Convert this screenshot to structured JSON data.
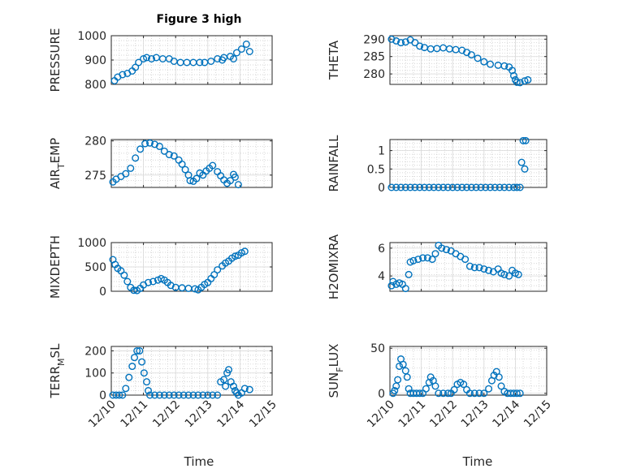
{
  "figure_title": "Figure 3 high",
  "colors": {
    "marker": "#0072bd",
    "axes": "#262626",
    "grid": "#d9d9d9",
    "background": "#ffffff"
  },
  "chart_data": [
    {
      "id": "pressure",
      "type": "scatter",
      "title": "Figure 3 high",
      "xlabel": "",
      "ylabel": "PRESSURE",
      "ylabel_sub": "",
      "xlim": [
        0,
        5
      ],
      "ylim": [
        800,
        1000
      ],
      "yticks": [
        800,
        900,
        1000
      ],
      "ytick_labels": [
        "800",
        "900",
        "1000"
      ],
      "xticks": [
        0,
        1,
        2,
        3,
        4,
        5
      ],
      "xtick_labels": [],
      "grid": true,
      "minor_grid": true,
      "points": [
        [
          0.1,
          815
        ],
        [
          0.2,
          830
        ],
        [
          0.35,
          840
        ],
        [
          0.5,
          845
        ],
        [
          0.65,
          855
        ],
        [
          0.75,
          870
        ],
        [
          0.85,
          890
        ],
        [
          1.0,
          905
        ],
        [
          1.1,
          910
        ],
        [
          1.25,
          905
        ],
        [
          1.4,
          910
        ],
        [
          1.6,
          905
        ],
        [
          1.8,
          905
        ],
        [
          1.95,
          895
        ],
        [
          2.15,
          890
        ],
        [
          2.35,
          890
        ],
        [
          2.55,
          890
        ],
        [
          2.75,
          890
        ],
        [
          2.9,
          890
        ],
        [
          3.1,
          895
        ],
        [
          3.3,
          905
        ],
        [
          3.5,
          910
        ],
        [
          3.7,
          915
        ],
        [
          3.9,
          930
        ],
        [
          4.05,
          945
        ],
        [
          4.2,
          965
        ],
        [
          4.3,
          935
        ],
        [
          3.8,
          905
        ],
        [
          3.45,
          900
        ]
      ]
    },
    {
      "id": "theta",
      "type": "scatter",
      "title": "",
      "xlabel": "",
      "ylabel": "THETA",
      "ylabel_sub": "",
      "xlim": [
        0,
        5
      ],
      "ylim": [
        277,
        291
      ],
      "yticks": [
        280,
        285,
        290
      ],
      "ytick_labels": [
        "280",
        "285",
        "290"
      ],
      "xticks": [
        0,
        1,
        2,
        3,
        4,
        5
      ],
      "xtick_labels": [],
      "grid": true,
      "minor_grid": true,
      "points": [
        [
          0.05,
          290
        ],
        [
          0.2,
          289.5
        ],
        [
          0.35,
          289
        ],
        [
          0.5,
          289.2
        ],
        [
          0.65,
          289.8
        ],
        [
          0.8,
          289
        ],
        [
          0.95,
          288
        ],
        [
          1.1,
          287.6
        ],
        [
          1.3,
          287.2
        ],
        [
          1.5,
          287.3
        ],
        [
          1.7,
          287.5
        ],
        [
          1.9,
          287.2
        ],
        [
          2.1,
          287.0
        ],
        [
          2.3,
          286.8
        ],
        [
          2.45,
          286.2
        ],
        [
          2.6,
          285.5
        ],
        [
          2.8,
          284.5
        ],
        [
          3.0,
          283.5
        ],
        [
          3.2,
          282.8
        ],
        [
          3.45,
          282.5
        ],
        [
          3.65,
          282.3
        ],
        [
          3.8,
          282.0
        ],
        [
          3.9,
          281.0
        ],
        [
          3.95,
          279.5
        ],
        [
          4.0,
          278.3
        ],
        [
          4.05,
          277.6
        ],
        [
          4.15,
          277.5
        ],
        [
          4.3,
          278.0
        ],
        [
          4.4,
          278.3
        ]
      ]
    },
    {
      "id": "air_temp",
      "type": "scatter",
      "title": "",
      "xlabel": "",
      "ylabel": "AIR",
      "ylabel_sub": "T",
      "ylabel_rest": "EMP",
      "xlim": [
        0,
        5
      ],
      "ylim": [
        273.2,
        280.2
      ],
      "yticks": [
        275,
        280
      ],
      "ytick_labels": [
        "275",
        "280"
      ],
      "xticks": [
        0,
        1,
        2,
        3,
        4,
        5
      ],
      "xtick_labels": [],
      "grid": true,
      "minor_grid": true,
      "points": [
        [
          0.05,
          274.0
        ],
        [
          0.15,
          274.4
        ],
        [
          0.3,
          274.8
        ],
        [
          0.45,
          275.2
        ],
        [
          0.6,
          276.0
        ],
        [
          0.75,
          277.5
        ],
        [
          0.9,
          278.8
        ],
        [
          1.05,
          279.6
        ],
        [
          1.2,
          279.7
        ],
        [
          1.35,
          279.5
        ],
        [
          1.5,
          279.2
        ],
        [
          1.65,
          278.5
        ],
        [
          1.8,
          278.0
        ],
        [
          1.95,
          277.8
        ],
        [
          2.1,
          277.2
        ],
        [
          2.2,
          276.6
        ],
        [
          2.3,
          275.8
        ],
        [
          2.4,
          275.0
        ],
        [
          2.45,
          274.2
        ],
        [
          2.55,
          274.1
        ],
        [
          2.65,
          274.5
        ],
        [
          2.75,
          275.3
        ],
        [
          2.85,
          275.0
        ],
        [
          2.95,
          275.6
        ],
        [
          3.05,
          276.0
        ],
        [
          3.15,
          276.4
        ],
        [
          3.3,
          275.5
        ],
        [
          3.4,
          274.9
        ],
        [
          3.5,
          274.3
        ],
        [
          3.6,
          273.8
        ],
        [
          3.7,
          274.2
        ],
        [
          3.8,
          275.1
        ],
        [
          3.85,
          274.7
        ],
        [
          3.95,
          273.6
        ]
      ]
    },
    {
      "id": "rainfall",
      "type": "scatter",
      "title": "",
      "xlabel": "",
      "ylabel": "RAINFALL",
      "ylabel_sub": "",
      "xlim": [
        0,
        5
      ],
      "ylim": [
        0,
        1.3
      ],
      "yticks": [
        0,
        0.5,
        1
      ],
      "ytick_labels": [
        "0",
        "0.5",
        "1"
      ],
      "xticks": [
        0,
        1,
        2,
        3,
        4,
        5
      ],
      "xtick_labels": [],
      "grid": true,
      "minor_grid": true,
      "points": [
        [
          0.05,
          0
        ],
        [
          0.2,
          0
        ],
        [
          0.35,
          0
        ],
        [
          0.5,
          0
        ],
        [
          0.65,
          0
        ],
        [
          0.8,
          0
        ],
        [
          0.95,
          0
        ],
        [
          1.1,
          0
        ],
        [
          1.25,
          0
        ],
        [
          1.4,
          0
        ],
        [
          1.55,
          0
        ],
        [
          1.7,
          0
        ],
        [
          1.85,
          0
        ],
        [
          2.0,
          0
        ],
        [
          2.15,
          0
        ],
        [
          2.3,
          0
        ],
        [
          2.45,
          0
        ],
        [
          2.6,
          0
        ],
        [
          2.75,
          0
        ],
        [
          2.9,
          0
        ],
        [
          3.05,
          0
        ],
        [
          3.2,
          0
        ],
        [
          3.35,
          0
        ],
        [
          3.5,
          0
        ],
        [
          3.65,
          0
        ],
        [
          3.8,
          0
        ],
        [
          3.95,
          0
        ],
        [
          4.05,
          0
        ],
        [
          4.15,
          0
        ],
        [
          4.2,
          0.68
        ],
        [
          4.3,
          0.5
        ],
        [
          4.25,
          1.27
        ],
        [
          4.33,
          1.27
        ]
      ]
    },
    {
      "id": "mixdepth",
      "type": "scatter",
      "title": "",
      "xlabel": "",
      "ylabel": "MIXDEPTH",
      "ylabel_sub": "",
      "xlim": [
        0,
        5
      ],
      "ylim": [
        0,
        1000
      ],
      "yticks": [
        0,
        500,
        1000
      ],
      "ytick_labels": [
        "0",
        "500",
        "1000"
      ],
      "xticks": [
        0,
        1,
        2,
        3,
        4,
        5
      ],
      "xtick_labels": [],
      "grid": true,
      "minor_grid": true,
      "points": [
        [
          0.05,
          650
        ],
        [
          0.12,
          550
        ],
        [
          0.2,
          470
        ],
        [
          0.3,
          420
        ],
        [
          0.4,
          330
        ],
        [
          0.5,
          200
        ],
        [
          0.6,
          80
        ],
        [
          0.7,
          20
        ],
        [
          0.8,
          15
        ],
        [
          0.9,
          60
        ],
        [
          1.0,
          130
        ],
        [
          1.15,
          180
        ],
        [
          1.3,
          200
        ],
        [
          1.45,
          230
        ],
        [
          1.55,
          260
        ],
        [
          1.65,
          230
        ],
        [
          1.75,
          180
        ],
        [
          1.85,
          120
        ],
        [
          2.0,
          80
        ],
        [
          2.2,
          70
        ],
        [
          2.4,
          60
        ],
        [
          2.6,
          50
        ],
        [
          2.7,
          30
        ],
        [
          2.8,
          80
        ],
        [
          2.9,
          140
        ],
        [
          3.0,
          180
        ],
        [
          3.1,
          260
        ],
        [
          3.2,
          340
        ],
        [
          3.3,
          440
        ],
        [
          3.45,
          520
        ],
        [
          3.55,
          580
        ],
        [
          3.65,
          620
        ],
        [
          3.75,
          680
        ],
        [
          3.85,
          720
        ],
        [
          3.95,
          740
        ],
        [
          4.05,
          790
        ],
        [
          4.15,
          820
        ]
      ]
    },
    {
      "id": "h2omixra",
      "type": "scatter",
      "title": "",
      "xlabel": "",
      "ylabel": "H2OMIXRA",
      "ylabel_sub": "",
      "xlim": [
        0,
        5
      ],
      "ylim": [
        2.9,
        6.4
      ],
      "yticks": [
        4,
        6
      ],
      "ytick_labels": [
        "4",
        "6"
      ],
      "xticks": [
        0,
        1,
        2,
        3,
        4,
        5
      ],
      "xtick_labels": [],
      "grid": true,
      "minor_grid": true,
      "points": [
        [
          0.05,
          3.3
        ],
        [
          0.1,
          3.6
        ],
        [
          0.2,
          3.4
        ],
        [
          0.3,
          3.5
        ],
        [
          0.4,
          3.4
        ],
        [
          0.5,
          3.1
        ],
        [
          0.6,
          4.1
        ],
        [
          0.65,
          5.0
        ],
        [
          0.75,
          5.1
        ],
        [
          0.9,
          5.2
        ],
        [
          1.05,
          5.3
        ],
        [
          1.2,
          5.3
        ],
        [
          1.35,
          5.2
        ],
        [
          1.45,
          5.6
        ],
        [
          1.55,
          6.2
        ],
        [
          1.65,
          6.0
        ],
        [
          1.8,
          5.9
        ],
        [
          1.95,
          5.8
        ],
        [
          2.1,
          5.6
        ],
        [
          2.25,
          5.4
        ],
        [
          2.4,
          5.2
        ],
        [
          2.55,
          4.7
        ],
        [
          2.7,
          4.6
        ],
        [
          2.85,
          4.6
        ],
        [
          3.0,
          4.5
        ],
        [
          3.15,
          4.4
        ],
        [
          3.3,
          4.3
        ],
        [
          3.45,
          4.5
        ],
        [
          3.55,
          4.2
        ],
        [
          3.65,
          4.1
        ],
        [
          3.8,
          4.0
        ],
        [
          3.9,
          4.4
        ],
        [
          4.0,
          4.2
        ],
        [
          4.1,
          4.1
        ]
      ]
    },
    {
      "id": "terr_msl",
      "type": "scatter",
      "title": "",
      "xlabel": "",
      "ylabel": "TERR",
      "ylabel_sub": "M",
      "ylabel_rest": "SL",
      "xlim": [
        0,
        5
      ],
      "ylim": [
        0,
        220
      ],
      "yticks": [
        0,
        100,
        200
      ],
      "ytick_labels": [
        "0",
        "100",
        "200"
      ],
      "xticks": [
        0,
        1,
        2,
        3,
        4,
        5
      ],
      "xtick_labels": [
        "12/10",
        "12/11",
        "12/12",
        "12/13",
        "12/14",
        "12/15"
      ],
      "grid": true,
      "minor_grid": true,
      "points": [
        [
          0.05,
          0
        ],
        [
          0.15,
          0
        ],
        [
          0.25,
          0
        ],
        [
          0.35,
          0
        ],
        [
          0.45,
          30
        ],
        [
          0.55,
          80
        ],
        [
          0.65,
          130
        ],
        [
          0.72,
          170
        ],
        [
          0.8,
          200
        ],
        [
          0.88,
          200
        ],
        [
          0.95,
          150
        ],
        [
          1.02,
          100
        ],
        [
          1.1,
          60
        ],
        [
          1.15,
          20
        ],
        [
          1.2,
          0
        ],
        [
          1.35,
          0
        ],
        [
          1.5,
          0
        ],
        [
          1.65,
          0
        ],
        [
          1.8,
          0
        ],
        [
          1.95,
          0
        ],
        [
          2.1,
          0
        ],
        [
          2.25,
          0
        ],
        [
          2.4,
          0
        ],
        [
          2.55,
          0
        ],
        [
          2.7,
          0
        ],
        [
          2.85,
          0
        ],
        [
          3.0,
          0
        ],
        [
          3.15,
          0
        ],
        [
          3.3,
          0
        ],
        [
          3.4,
          60
        ],
        [
          3.5,
          70
        ],
        [
          3.55,
          40
        ],
        [
          3.6,
          100
        ],
        [
          3.65,
          115
        ],
        [
          3.72,
          60
        ],
        [
          3.8,
          40
        ],
        [
          3.85,
          20
        ],
        [
          3.9,
          10
        ],
        [
          3.95,
          0
        ],
        [
          4.05,
          10
        ],
        [
          4.15,
          30
        ],
        [
          4.3,
          25
        ]
      ]
    },
    {
      "id": "sun_flux",
      "type": "scatter",
      "title": "",
      "xlabel": "",
      "ylabel": "SUN",
      "ylabel_sub": "F",
      "ylabel_rest": "LUX",
      "xlim": [
        0,
        5
      ],
      "ylim": [
        -2,
        52
      ],
      "yticks": [
        0,
        50
      ],
      "ytick_labels": [
        "0",
        "50"
      ],
      "xticks": [
        0,
        1,
        2,
        3,
        4,
        5
      ],
      "xtick_labels": [
        "12/10",
        "12/11",
        "12/12",
        "12/13",
        "12/14",
        "12/15"
      ],
      "grid": true,
      "minor_grid": true,
      "points": [
        [
          0.1,
          0
        ],
        [
          0.15,
          3
        ],
        [
          0.2,
          8
        ],
        [
          0.25,
          15
        ],
        [
          0.3,
          30
        ],
        [
          0.35,
          38
        ],
        [
          0.42,
          32
        ],
        [
          0.5,
          25
        ],
        [
          0.55,
          18
        ],
        [
          0.6,
          5
        ],
        [
          0.65,
          0
        ],
        [
          0.75,
          0
        ],
        [
          0.85,
          0
        ],
        [
          0.95,
          0
        ],
        [
          1.05,
          0
        ],
        [
          1.15,
          5
        ],
        [
          1.25,
          12
        ],
        [
          1.3,
          18
        ],
        [
          1.38,
          14
        ],
        [
          1.45,
          8
        ],
        [
          1.55,
          0
        ],
        [
          1.7,
          0
        ],
        [
          1.85,
          0
        ],
        [
          1.95,
          0
        ],
        [
          2.05,
          4
        ],
        [
          2.15,
          10
        ],
        [
          2.25,
          12
        ],
        [
          2.35,
          10
        ],
        [
          2.45,
          4
        ],
        [
          2.55,
          0
        ],
        [
          2.7,
          0
        ],
        [
          2.85,
          0
        ],
        [
          3.0,
          0
        ],
        [
          3.15,
          5
        ],
        [
          3.25,
          14
        ],
        [
          3.32,
          20
        ],
        [
          3.4,
          24
        ],
        [
          3.48,
          18
        ],
        [
          3.55,
          8
        ],
        [
          3.65,
          2
        ],
        [
          3.75,
          0
        ],
        [
          3.85,
          0
        ],
        [
          3.95,
          0
        ],
        [
          4.05,
          0
        ],
        [
          4.15,
          0
        ]
      ]
    }
  ],
  "xlabels": {
    "left": "Time",
    "right": "Time"
  }
}
